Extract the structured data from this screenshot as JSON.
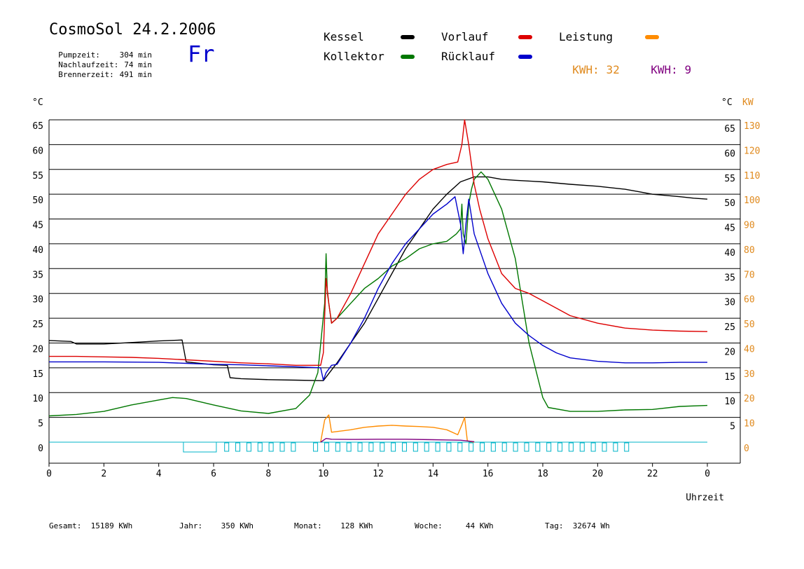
{
  "header": {
    "title": "CosmoSol 24.2.2006",
    "day": "Fr",
    "stats": [
      {
        "label": "Pumpzeit:",
        "value": "304 min"
      },
      {
        "label": "Nachlaufzeit:",
        "value": "74 min"
      },
      {
        "label": "Brennerzeit:",
        "value": "491 min"
      }
    ]
  },
  "legend": [
    {
      "label": "Kessel",
      "color": "#000000",
      "text_color": "#000000"
    },
    {
      "label": "Kollektor",
      "color": "#007700",
      "text_color": "#000000"
    },
    {
      "label": "Vorlauf",
      "color": "#dd0000",
      "text_color": "#000000"
    },
    {
      "label": "Rücklauf",
      "color": "#0000cc",
      "text_color": "#000000"
    },
    {
      "label": "Leistung",
      "color": "#ff8c00",
      "text_color": "#000000"
    }
  ],
  "kwh": [
    {
      "label": "KWH:",
      "value": "32",
      "color": "#e08a1e"
    },
    {
      "label": "KWH:",
      "value": "9",
      "color": "#800080"
    }
  ],
  "footer": [
    {
      "label": "Gesamt:",
      "value": "15189 KWh"
    },
    {
      "label": "Jahr:",
      "value": "350 KWh"
    },
    {
      "label": "Monat:",
      "value": "128 KWh"
    },
    {
      "label": "Woche:",
      "value": "44 KWh"
    },
    {
      "label": "Tag:",
      "value": "32674 Wh"
    }
  ],
  "chart_data": {
    "type": "line",
    "xlabel": "Uhrzeit",
    "ylabel_left": "°C",
    "ylabel_right_temp": "°C",
    "ylabel_right_power": "KW",
    "xlim": [
      0,
      24
    ],
    "ylim": [
      0,
      65
    ],
    "ylim_power": [
      0,
      130
    ],
    "x_ticks": [
      "0",
      "2",
      "4",
      "6",
      "8",
      "10",
      "12",
      "14",
      "16",
      "18",
      "20",
      "22",
      "0"
    ],
    "y_ticks": [
      0,
      5,
      10,
      15,
      20,
      25,
      30,
      35,
      40,
      45,
      50,
      55,
      60,
      65
    ],
    "power_ticks": [
      0,
      10,
      20,
      30,
      40,
      50,
      60,
      70,
      80,
      90,
      100,
      110,
      120,
      130
    ],
    "grid": "horizontal",
    "series": [
      {
        "name": "Kessel",
        "color": "#000000",
        "points": [
          [
            0,
            20.5
          ],
          [
            0.8,
            20.3
          ],
          [
            1,
            19.8
          ],
          [
            2,
            19.8
          ],
          [
            3,
            20.1
          ],
          [
            4,
            20.4
          ],
          [
            4.85,
            20.6
          ],
          [
            5,
            16.2
          ],
          [
            6,
            15.6
          ],
          [
            6.5,
            15.5
          ],
          [
            6.6,
            13.0
          ],
          [
            7,
            12.8
          ],
          [
            8,
            12.6
          ],
          [
            9,
            12.5
          ],
          [
            9.9,
            12.4
          ],
          [
            10,
            12.4
          ],
          [
            10.5,
            16
          ],
          [
            11,
            20
          ],
          [
            11.5,
            24
          ],
          [
            12,
            29
          ],
          [
            12.5,
            34
          ],
          [
            13,
            39
          ],
          [
            13.5,
            43
          ],
          [
            14,
            47
          ],
          [
            14.5,
            50
          ],
          [
            15,
            52.5
          ],
          [
            15.5,
            53.5
          ],
          [
            16,
            53.5
          ],
          [
            16.5,
            53
          ],
          [
            17,
            52.8
          ],
          [
            18,
            52.5
          ],
          [
            19,
            52
          ],
          [
            20,
            51.6
          ],
          [
            21,
            51
          ],
          [
            21.5,
            50.5
          ],
          [
            22,
            50
          ],
          [
            23,
            49.5
          ],
          [
            23.5,
            49.2
          ],
          [
            24,
            49
          ]
        ]
      },
      {
        "name": "Kollektor",
        "color": "#007700",
        "points": [
          [
            0,
            5.3
          ],
          [
            1,
            5.6
          ],
          [
            2,
            6.2
          ],
          [
            3,
            7.5
          ],
          [
            4,
            8.5
          ],
          [
            4.5,
            9.0
          ],
          [
            5,
            8.8
          ],
          [
            6,
            7.5
          ],
          [
            7,
            6.3
          ],
          [
            8,
            5.8
          ],
          [
            9,
            6.8
          ],
          [
            9.5,
            9.5
          ],
          [
            9.8,
            14
          ],
          [
            10.05,
            28
          ],
          [
            10.1,
            38
          ],
          [
            10.15,
            30
          ],
          [
            10.3,
            24
          ],
          [
            10.5,
            25
          ],
          [
            11,
            28
          ],
          [
            11.5,
            31
          ],
          [
            12,
            33
          ],
          [
            12.5,
            35.5
          ],
          [
            13,
            37
          ],
          [
            13.5,
            39
          ],
          [
            14,
            40
          ],
          [
            14.5,
            40.5
          ],
          [
            14.85,
            42
          ],
          [
            15,
            43
          ],
          [
            15.05,
            48
          ],
          [
            15.1,
            42
          ],
          [
            15.2,
            40
          ],
          [
            15.3,
            48
          ],
          [
            15.4,
            51
          ],
          [
            15.5,
            53
          ],
          [
            15.75,
            54.5
          ],
          [
            16,
            53
          ],
          [
            16.5,
            47
          ],
          [
            17,
            37
          ],
          [
            17.5,
            20
          ],
          [
            18,
            9
          ],
          [
            18.2,
            7
          ],
          [
            19,
            6.2
          ],
          [
            20,
            6.2
          ],
          [
            21,
            6.5
          ],
          [
            22,
            6.6
          ],
          [
            23,
            7.2
          ],
          [
            24,
            7.4
          ]
        ]
      },
      {
        "name": "Vorlauf",
        "color": "#dd0000",
        "points": [
          [
            0,
            17.3
          ],
          [
            1,
            17.3
          ],
          [
            2,
            17.2
          ],
          [
            3,
            17.1
          ],
          [
            4,
            16.9
          ],
          [
            5,
            16.6
          ],
          [
            6,
            16.3
          ],
          [
            7,
            16.0
          ],
          [
            8,
            15.8
          ],
          [
            9,
            15.5
          ],
          [
            9.9,
            15.5
          ],
          [
            10.0,
            18
          ],
          [
            10.1,
            33
          ],
          [
            10.2,
            28
          ],
          [
            10.3,
            24
          ],
          [
            10.5,
            25
          ],
          [
            11,
            30
          ],
          [
            11.5,
            36
          ],
          [
            12,
            42
          ],
          [
            12.5,
            46
          ],
          [
            13,
            50
          ],
          [
            13.5,
            53
          ],
          [
            14,
            55
          ],
          [
            14.5,
            56
          ],
          [
            14.9,
            56.5
          ],
          [
            15.05,
            60
          ],
          [
            15.15,
            65
          ],
          [
            15.3,
            60
          ],
          [
            15.5,
            52
          ],
          [
            15.7,
            47
          ],
          [
            16,
            41
          ],
          [
            16.5,
            34
          ],
          [
            17,
            31
          ],
          [
            17.5,
            30
          ],
          [
            18,
            28.5
          ],
          [
            18.5,
            27
          ],
          [
            19,
            25.5
          ],
          [
            20,
            24
          ],
          [
            21,
            23
          ],
          [
            22,
            22.6
          ],
          [
            23,
            22.4
          ],
          [
            24,
            22.3
          ]
        ]
      },
      {
        "name": "Rücklauf",
        "color": "#0000cc",
        "points": [
          [
            0,
            16.2
          ],
          [
            2,
            16.2
          ],
          [
            4,
            16.1
          ],
          [
            5,
            15.9
          ],
          [
            6,
            15.7
          ],
          [
            7,
            15.6
          ],
          [
            8,
            15.4
          ],
          [
            9,
            15.2
          ],
          [
            9.9,
            15.0
          ],
          [
            10.0,
            12.5
          ],
          [
            10.1,
            14
          ],
          [
            10.3,
            15.5
          ],
          [
            10.5,
            15.7
          ],
          [
            11,
            20
          ],
          [
            11.5,
            25
          ],
          [
            12,
            31
          ],
          [
            12.5,
            36
          ],
          [
            13,
            40
          ],
          [
            13.5,
            43
          ],
          [
            14,
            46
          ],
          [
            14.5,
            48
          ],
          [
            14.8,
            49.5
          ],
          [
            15,
            44
          ],
          [
            15.1,
            38
          ],
          [
            15.2,
            44
          ],
          [
            15.3,
            49
          ],
          [
            15.5,
            42
          ],
          [
            16,
            34
          ],
          [
            16.5,
            28
          ],
          [
            17,
            24
          ],
          [
            17.5,
            21.5
          ],
          [
            18,
            19.5
          ],
          [
            18.5,
            18
          ],
          [
            19,
            17
          ],
          [
            20,
            16.3
          ],
          [
            21,
            16.0
          ],
          [
            22,
            16.0
          ],
          [
            23,
            16.1
          ],
          [
            24,
            16.1
          ]
        ]
      },
      {
        "name": "Leistung",
        "color": "#ff8c00",
        "axis": "power",
        "points": [
          [
            9.9,
            0
          ],
          [
            10.05,
            9
          ],
          [
            10.2,
            11
          ],
          [
            10.3,
            4
          ],
          [
            11,
            5
          ],
          [
            11.5,
            6
          ],
          [
            12,
            6.5
          ],
          [
            12.5,
            6.8
          ],
          [
            13,
            6.5
          ],
          [
            13.5,
            6.3
          ],
          [
            14,
            6
          ],
          [
            14.5,
            5
          ],
          [
            14.9,
            3
          ],
          [
            15.05,
            7
          ],
          [
            15.15,
            10
          ],
          [
            15.25,
            0.5
          ],
          [
            15.5,
            0
          ]
        ]
      },
      {
        "name": "Leistung-kWh",
        "color": "#800080",
        "axis": "power",
        "points": [
          [
            9.9,
            0
          ],
          [
            10.1,
            1.5
          ],
          [
            10.3,
            1.2
          ],
          [
            11,
            1.1
          ],
          [
            12,
            1.2
          ],
          [
            13,
            1.2
          ],
          [
            14,
            1.0
          ],
          [
            15,
            0.8
          ],
          [
            15.5,
            0.2
          ]
        ]
      }
    ],
    "ticks_row": {
      "color": "#00b4c8",
      "y": 0
    }
  }
}
